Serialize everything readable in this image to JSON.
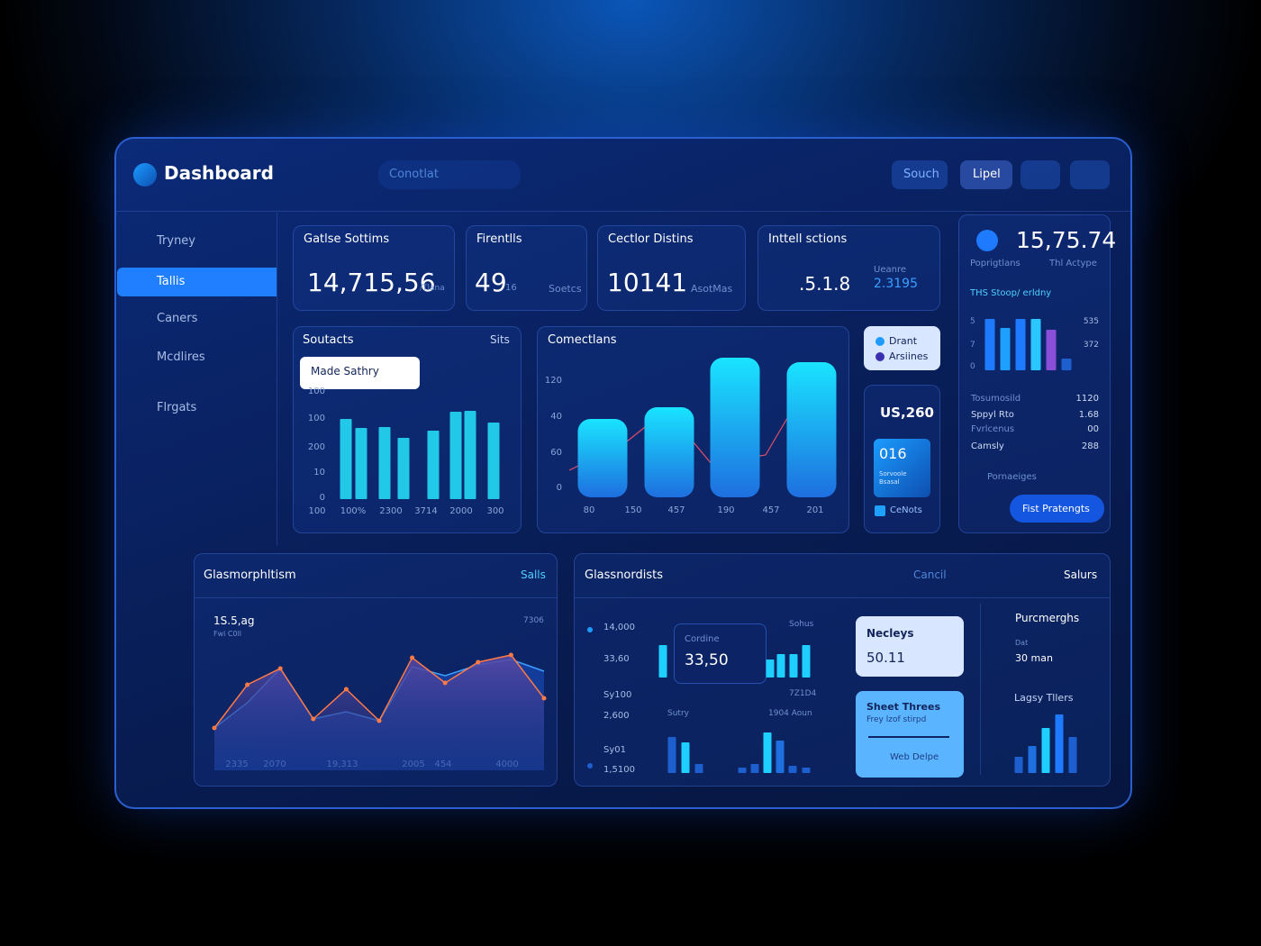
{
  "header": {
    "title": "Dashboard",
    "search": "Conotlat",
    "buttons": [
      "Souch",
      "Lipel"
    ]
  },
  "sidebar": {
    "items": [
      "Tryney",
      "Tallis",
      "Caners",
      "Mcdlires",
      "Flrgats"
    ]
  },
  "stats": [
    {
      "title": "Gatlse Sottims",
      "value": "14,715,56",
      "unit": "/Tlana"
    },
    {
      "title": "Firentlls",
      "value": "49",
      "unit": "16",
      "note": "Soetcs"
    },
    {
      "title": "Cectlor Distins",
      "value": "10141",
      "note": "AsotMas"
    },
    {
      "title": "Inttell sctions",
      "value": ".5.1.8",
      "note_label": "Ueanre",
      "note": "2.3195"
    }
  ],
  "soutacts": {
    "title": "Soutacts",
    "action": "Sits",
    "tooltip": "Made Sathry",
    "ylabels": [
      "100",
      "100",
      "200",
      "10",
      "0"
    ],
    "xlabels": [
      "100",
      "100%",
      "2300",
      "3714",
      "2000",
      "300"
    ],
    "values": [
      89,
      79,
      80,
      68,
      76,
      97,
      98,
      85
    ]
  },
  "comections": {
    "title": "Comectlans",
    "ylabels": [
      "120",
      "40",
      "60",
      "0"
    ],
    "xlabels": [
      "80",
      "150",
      "457",
      "190",
      "457",
      "201"
    ],
    "bars": [
      87,
      100,
      155,
      150
    ],
    "line": [
      30,
      62,
      97,
      37,
      47,
      132
    ]
  },
  "legend": [
    "Drant",
    "Arsiines"
  ],
  "summary": {
    "value": "US,260",
    "tile": "016",
    "tile_sub": [
      "Sorvoole",
      "Bsasal"
    ],
    "check": "CeNots"
  },
  "right": {
    "value": "15,75.74",
    "labels": [
      "Poprigtlans",
      "Thl Actype"
    ],
    "chart_title": "THS Stoop/ erldny",
    "left_axis": [
      "5",
      "7",
      "0"
    ],
    "right_axis": [
      "535",
      "372"
    ],
    "bars": [
      57,
      47,
      57,
      57,
      45,
      13
    ],
    "colors": [
      "#1e7bff",
      "#1ea0ff",
      "#1e7bff",
      "#29c6ff",
      "#8a4fd8",
      "#1e5fd0"
    ],
    "rows": [
      [
        "Tosumosild",
        "1120"
      ],
      [
        "Sppyl Rto",
        "1.68"
      ],
      [
        "Fvrlcenus",
        "00"
      ],
      [
        "Camsly",
        "288"
      ]
    ],
    "link": "Pornaeiges",
    "button": "Fist Pratengts"
  },
  "area": {
    "title": "Glasmorphltism",
    "action": "Salls",
    "value": "1S.5,ag",
    "sub": "Fwi C0ll",
    "corner": "7306",
    "xlabels": [
      "2335",
      "2070",
      "19,313",
      "2005",
      "454",
      "4000"
    ],
    "lines": [
      {
        "color": "#ff7a45",
        "values": [
          42,
          90,
          108,
          52,
          85,
          50,
          120,
          92,
          115,
          123,
          75
        ]
      },
      {
        "color": "#3aa0ff",
        "values": [
          42,
          70,
          108,
          52,
          60,
          50,
          110,
          100,
          112,
          118,
          105
        ]
      }
    ]
  },
  "glass": {
    "title": "Glassnordists",
    "actions": [
      "Cancil",
      "Salurs"
    ],
    "ylabels": [
      "14,000",
      "33,60",
      "Sy100",
      "2,600",
      "Sy01",
      "1,5100"
    ],
    "tooltip": {
      "label": "Cordine",
      "value": "33,50"
    },
    "labels": [
      "Sohus",
      "7Z1D4",
      "Sutry",
      "1904 Aoun"
    ],
    "bars_top": [
      36,
      20,
      26,
      26,
      36
    ],
    "bars_bottom": [
      40,
      34,
      10,
      6,
      10,
      45,
      36,
      8,
      6
    ],
    "card1": {
      "title": "Necleys",
      "value": "50.11"
    },
    "card2": {
      "title": "Sheet Threes",
      "sub": "Frey lzof stirpd",
      "link": "Web Delpe"
    },
    "side": {
      "title": "Purcmerghs",
      "sub": "Dat",
      "value": "30 man",
      "chart_title": "Lagsy Tllers",
      "bars": [
        18,
        30,
        50,
        65,
        40
      ]
    }
  }
}
